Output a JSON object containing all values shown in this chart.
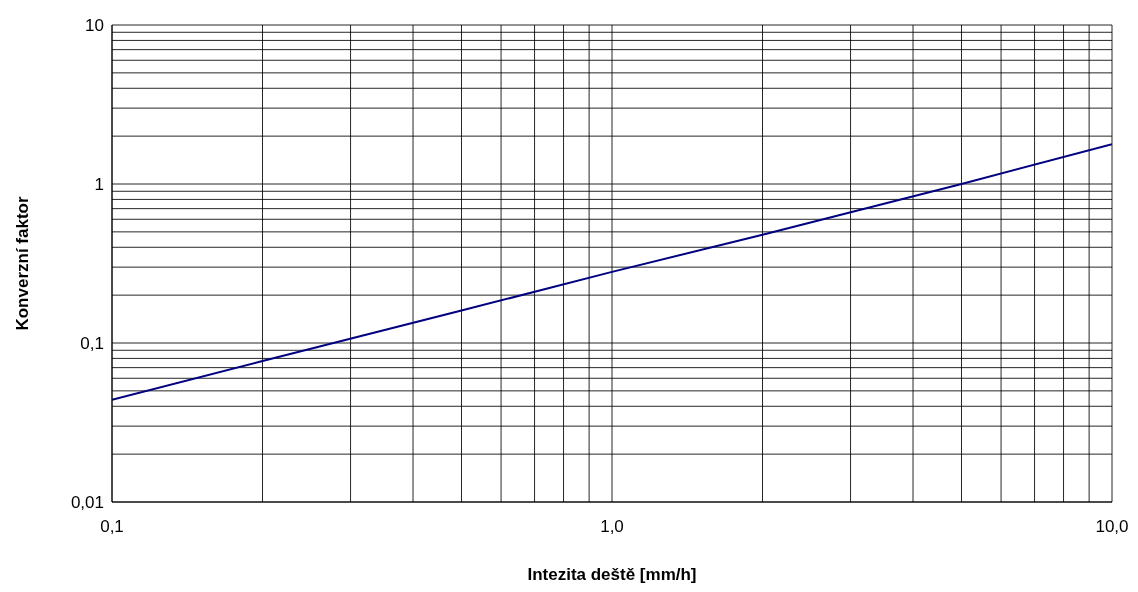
{
  "chart_data": {
    "type": "line",
    "xlabel": "Intezita deště [mm/h]",
    "ylabel": "Konverzní faktor",
    "log": "xy",
    "grid": true,
    "x": [
      0.1,
      0.2,
      0.5,
      1,
      2,
      5,
      10
    ],
    "series": [
      {
        "color": "#000080",
        "values": [
          0.044,
          0.077,
          0.16,
          0.28,
          0.48,
          1.0,
          1.78
        ]
      }
    ],
    "xlim": [
      0.1,
      10
    ],
    "ylim": [
      0.01,
      10
    ],
    "xticks": [
      {
        "value": 0.1,
        "label": "0,1"
      },
      {
        "value": 0.2,
        "label": null
      },
      {
        "value": 0.3,
        "label": null
      },
      {
        "value": 0.4,
        "label": null
      },
      {
        "value": 0.5,
        "label": null
      },
      {
        "value": 0.6,
        "label": null
      },
      {
        "value": 0.7,
        "label": null
      },
      {
        "value": 0.8,
        "label": null
      },
      {
        "value": 0.9,
        "label": null
      },
      {
        "value": 1,
        "label": "1,0"
      },
      {
        "value": 2,
        "label": null
      },
      {
        "value": 3,
        "label": null
      },
      {
        "value": 4,
        "label": null
      },
      {
        "value": 5,
        "label": null
      },
      {
        "value": 6,
        "label": null
      },
      {
        "value": 7,
        "label": null
      },
      {
        "value": 8,
        "label": null
      },
      {
        "value": 9,
        "label": null
      },
      {
        "value": 10,
        "label": "10,0"
      }
    ],
    "yticks": [
      {
        "value": 0.01,
        "label": "0,01"
      },
      {
        "value": 0.02,
        "label": null
      },
      {
        "value": 0.03,
        "label": null
      },
      {
        "value": 0.04,
        "label": null
      },
      {
        "value": 0.05,
        "label": null
      },
      {
        "value": 0.06,
        "label": null
      },
      {
        "value": 0.07,
        "label": null
      },
      {
        "value": 0.08,
        "label": null
      },
      {
        "value": 0.09,
        "label": null
      },
      {
        "value": 0.1,
        "label": "0,1"
      },
      {
        "value": 0.2,
        "label": null
      },
      {
        "value": 0.3,
        "label": null
      },
      {
        "value": 0.4,
        "label": null
      },
      {
        "value": 0.5,
        "label": null
      },
      {
        "value": 0.6,
        "label": null
      },
      {
        "value": 0.7,
        "label": null
      },
      {
        "value": 0.8,
        "label": null
      },
      {
        "value": 0.9,
        "label": null
      },
      {
        "value": 1,
        "label": "1"
      },
      {
        "value": 2,
        "label": null
      },
      {
        "value": 3,
        "label": null
      },
      {
        "value": 4,
        "label": null
      },
      {
        "value": 5,
        "label": null
      },
      {
        "value": 6,
        "label": null
      },
      {
        "value": 7,
        "label": null
      },
      {
        "value": 8,
        "label": null
      },
      {
        "value": 9,
        "label": null
      },
      {
        "value": 10,
        "label": "10"
      }
    ]
  }
}
